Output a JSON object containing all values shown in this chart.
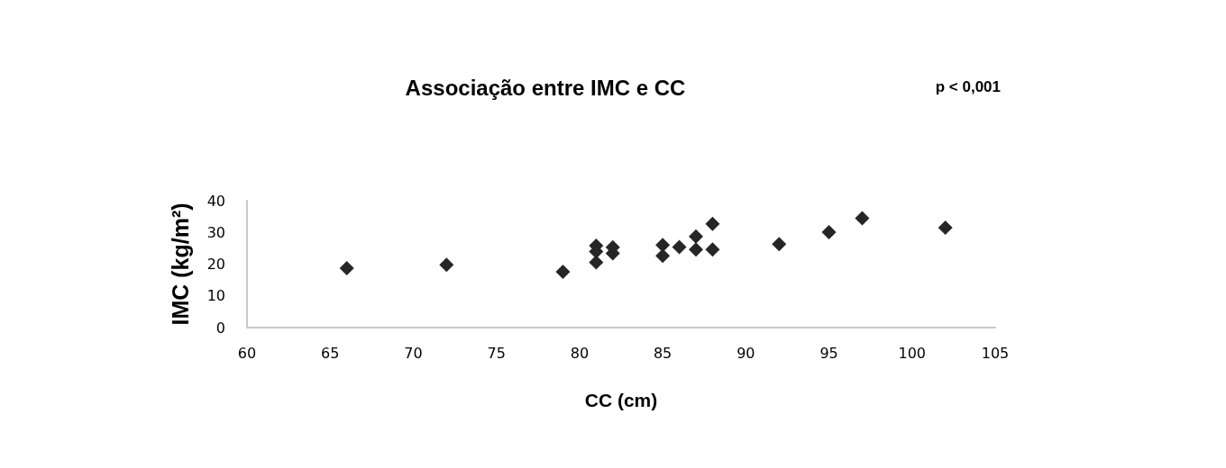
{
  "chart_data": {
    "type": "scatter",
    "title": "Associação entre IMC e CC",
    "xlabel": "CC (cm)",
    "ylabel": "IMC (kg/m²)",
    "annotations": [
      "p < 0,001"
    ],
    "x": [
      66,
      72,
      79,
      81,
      81,
      81,
      82,
      82,
      85,
      85,
      86,
      87,
      87,
      88,
      88,
      92,
      95,
      97,
      102
    ],
    "series": [
      {
        "color": "#262626",
        "values": [
          18.7,
          19.8,
          17.6,
          20.6,
          24,
          25.8,
          23.4,
          25.3,
          22.6,
          26,
          25.4,
          24.6,
          28.7,
          24.6,
          32.7,
          26.3,
          30.1,
          34.5,
          31.5
        ]
      }
    ],
    "xlim": [
      60,
      105
    ],
    "xticks": [
      60,
      65,
      70,
      75,
      80,
      85,
      90,
      95,
      100,
      105
    ],
    "ylim": [
      0,
      40
    ],
    "yticks": [
      0,
      10,
      20,
      30,
      40
    ],
    "marker": "diamond",
    "grid": false
  }
}
